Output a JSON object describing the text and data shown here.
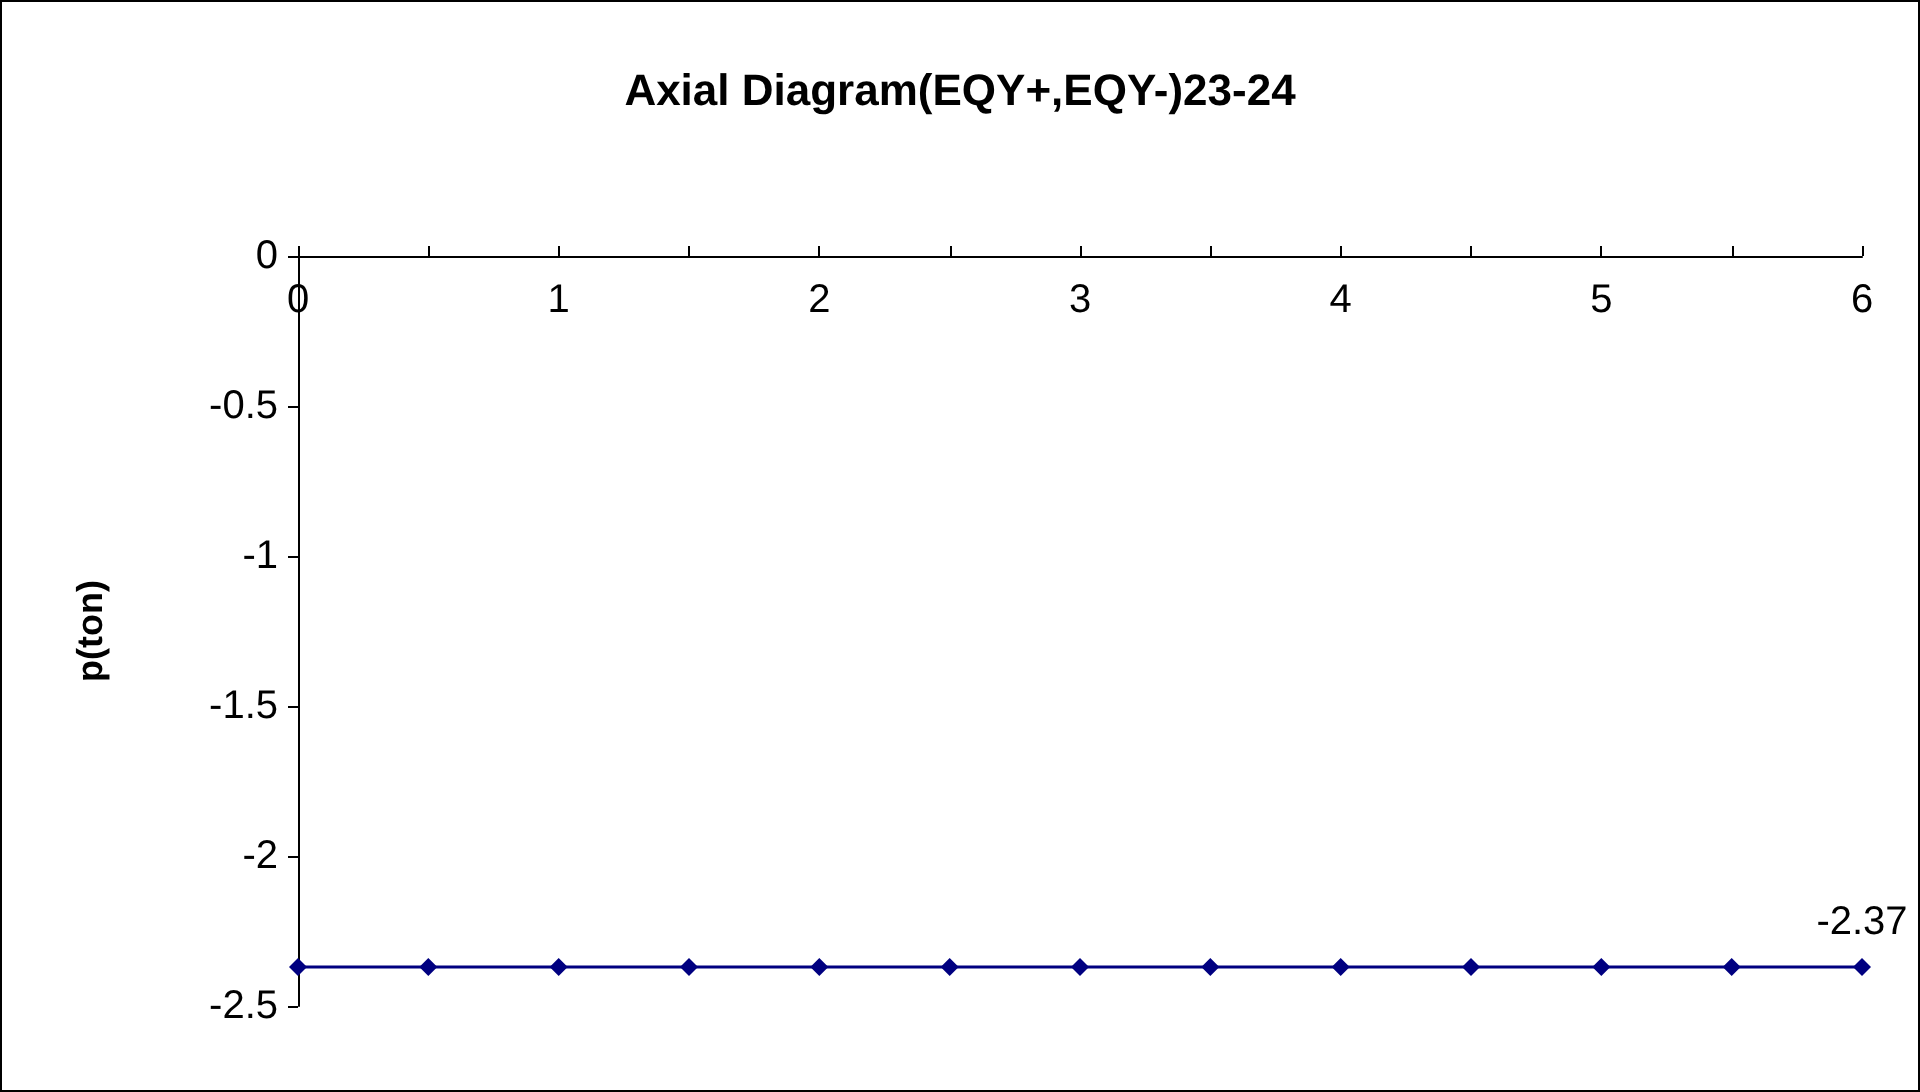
{
  "chart_data": {
    "type": "line",
    "title": "Axial Diagram(EQY+,EQY-)23-24",
    "ylabel": "p(ton)",
    "x": [
      0,
      0.5,
      1,
      1.5,
      2,
      2.5,
      3,
      3.5,
      4,
      4.5,
      5,
      5.5,
      6
    ],
    "series": [
      {
        "color": "#000080",
        "values": [
          -2.37,
          -2.37,
          -2.37,
          -2.37,
          -2.37,
          -2.37,
          -2.37,
          -2.37,
          -2.37,
          -2.37,
          -2.37,
          -2.37,
          -2.37
        ],
        "value_labels": [
          null,
          null,
          null,
          null,
          null,
          null,
          null,
          null,
          null,
          null,
          null,
          null,
          "-2.37"
        ]
      }
    ],
    "xlim": [
      0,
      6
    ],
    "xticks": [
      0,
      {
        "value": 0.5,
        "label": null
      },
      1,
      {
        "value": 1.5,
        "label": null
      },
      2,
      {
        "value": 2.5,
        "label": null
      },
      3,
      {
        "value": 3.5,
        "label": null
      },
      4,
      {
        "value": 4.5,
        "label": null
      },
      5,
      {
        "value": 5.5,
        "label": null
      },
      6
    ],
    "ylim": [
      -2.5,
      0
    ],
    "yticks": [
      0,
      -0.5,
      -1,
      -1.5,
      -2,
      -2.5
    ],
    "grid": false,
    "marker": "diamond",
    "line_style": "solid"
  }
}
